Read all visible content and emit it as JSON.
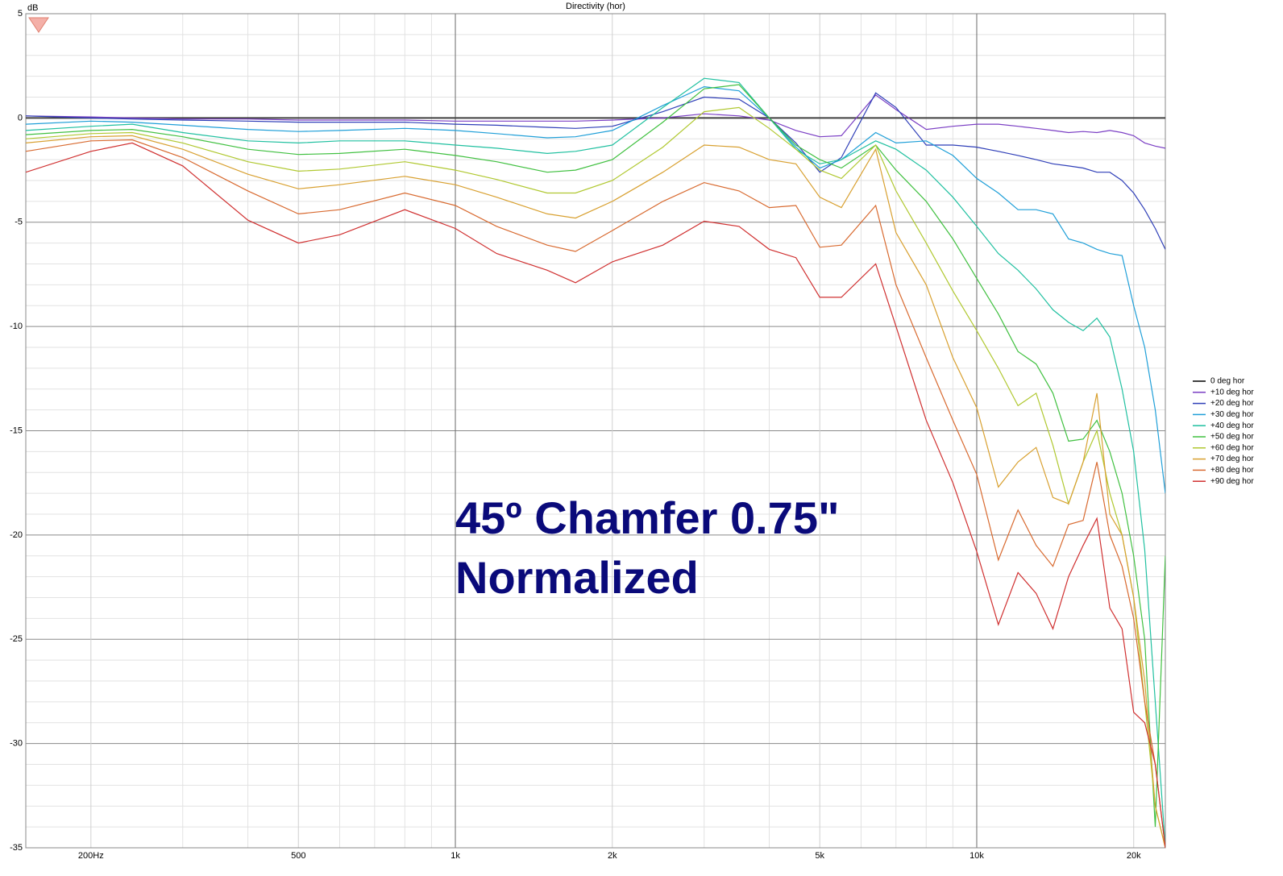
{
  "chart_data": {
    "type": "line",
    "title": "Directivity (hor)",
    "y_label": "dB",
    "annotations": [
      "45º Chamfer 0.75\"",
      "Normalized"
    ],
    "log_x": true,
    "grid": true,
    "legend": "right",
    "xlim": [
      150,
      23000
    ],
    "ylim": [
      -35,
      5
    ],
    "xticks": [
      {
        "value": 200,
        "label": "200Hz"
      },
      500,
      {
        "value": 1000,
        "label": "1k"
      },
      {
        "value": 2000,
        "label": "2k"
      },
      {
        "value": 5000,
        "label": "5k"
      },
      {
        "value": 10000,
        "label": "10k"
      },
      {
        "value": 20000,
        "label": "20k"
      }
    ],
    "xminorticks": [
      300,
      400,
      600,
      700,
      800,
      900,
      3000,
      4000,
      6000,
      7000,
      8000,
      9000
    ],
    "yticks": [
      5,
      0,
      -5,
      -10,
      -15,
      -20,
      -25,
      -30,
      -35
    ],
    "yminorticks": [
      4,
      3,
      2,
      1,
      -1,
      -2,
      -3,
      -4,
      -6,
      -7,
      -8,
      -9,
      -11,
      -12,
      -13,
      -14,
      -16,
      -17,
      -18,
      -19,
      -21,
      -22,
      -23,
      -24,
      -26,
      -27,
      -28,
      -29,
      -31,
      -32,
      -33,
      -34
    ],
    "x": [
      150,
      200,
      240,
      300,
      400,
      500,
      600,
      800,
      1000,
      1200,
      1500,
      1700,
      2000,
      2500,
      3000,
      3500,
      4000,
      4500,
      5000,
      5500,
      6400,
      7000,
      8000,
      9000,
      10000,
      11000,
      12000,
      13000,
      14000,
      15000,
      16000,
      17000,
      18000,
      19000,
      20000,
      21000,
      22000,
      23000
    ],
    "series": [
      {
        "name": "0 deg hor",
        "color": "#404040",
        "values": [
          0,
          0,
          0,
          0,
          0,
          0,
          0,
          0,
          0,
          0,
          0,
          0,
          0,
          0,
          0,
          0,
          0,
          0,
          0,
          0,
          0,
          0,
          0,
          0,
          0,
          0,
          0,
          0,
          0,
          0,
          0,
          0,
          0,
          0,
          0,
          0,
          0,
          0
        ]
      },
      {
        "name": "+10 deg hor",
        "color": "#7b3fc4",
        "values": [
          0.1,
          0.05,
          0,
          -0.05,
          -0.05,
          -0.1,
          -0.1,
          -0.1,
          -0.15,
          -0.15,
          -0.15,
          -0.15,
          -0.1,
          0,
          0.2,
          0.1,
          -0.1,
          -0.6,
          -0.9,
          -0.85,
          1.1,
          0.4,
          -0.55,
          -0.4,
          -0.3,
          -0.3,
          -0.4,
          -0.5,
          -0.6,
          -0.7,
          -0.65,
          -0.7,
          -0.6,
          -0.7,
          -0.85,
          -1.2,
          -1.35,
          -1.45
        ]
      },
      {
        "name": "+20 deg hor",
        "color": "#2f3fb8",
        "values": [
          0.1,
          0,
          -0.05,
          -0.1,
          -0.15,
          -0.2,
          -0.2,
          -0.2,
          -0.3,
          -0.35,
          -0.45,
          -0.5,
          -0.4,
          0.3,
          1.0,
          0.9,
          0,
          -1.2,
          -2.6,
          -1.9,
          1.2,
          0.5,
          -1.3,
          -1.3,
          -1.4,
          -1.6,
          -1.8,
          -2.0,
          -2.2,
          -2.3,
          -2.4,
          -2.6,
          -2.6,
          -3.0,
          -3.6,
          -4.4,
          -5.3,
          -6.3
        ]
      },
      {
        "name": "+30 deg hor",
        "color": "#1f9fd8",
        "values": [
          -0.3,
          -0.15,
          -0.2,
          -0.35,
          -0.55,
          -0.65,
          -0.6,
          -0.5,
          -0.6,
          -0.75,
          -0.95,
          -0.9,
          -0.6,
          0.6,
          1.5,
          1.3,
          0,
          -1.4,
          -2.4,
          -2.0,
          -0.7,
          -1.2,
          -1.1,
          -1.8,
          -2.9,
          -3.6,
          -4.4,
          -4.4,
          -4.6,
          -5.8,
          -6.0,
          -6.3,
          -6.5,
          -6.6,
          -9,
          -11,
          -14,
          -18
        ]
      },
      {
        "name": "+40 deg hor",
        "color": "#20c0a0",
        "values": [
          -0.6,
          -0.4,
          -0.3,
          -0.7,
          -1.1,
          -1.2,
          -1.1,
          -1.1,
          -1.3,
          -1.45,
          -1.7,
          -1.6,
          -1.3,
          0.5,
          1.9,
          1.7,
          0,
          -1.5,
          -2.2,
          -2.0,
          -1.1,
          -1.5,
          -2.5,
          -3.8,
          -5.2,
          -6.5,
          -7.3,
          -8.2,
          -9.2,
          -9.8,
          -10.2,
          -9.6,
          -10.5,
          -13,
          -16,
          -20.7,
          -28,
          -35
        ]
      },
      {
        "name": "+50 deg hor",
        "color": "#40c040",
        "values": [
          -0.8,
          -0.6,
          -0.55,
          -0.9,
          -1.5,
          -1.75,
          -1.7,
          -1.5,
          -1.8,
          -2.1,
          -2.6,
          -2.5,
          -2.0,
          -0.2,
          1.4,
          1.6,
          0,
          -1.3,
          -2.0,
          -2.4,
          -1.3,
          -2.5,
          -4.0,
          -5.8,
          -7.7,
          -9.4,
          -11.2,
          -11.8,
          -13.2,
          -15.5,
          -15.4,
          -14.5,
          -16,
          -18,
          -21,
          -25,
          -34,
          -21
        ]
      },
      {
        "name": "+60 deg hor",
        "color": "#b0c830",
        "values": [
          -1.0,
          -0.75,
          -0.7,
          -1.2,
          -2.1,
          -2.55,
          -2.45,
          -2.1,
          -2.5,
          -2.95,
          -3.6,
          -3.6,
          -3.0,
          -1.4,
          0.3,
          0.5,
          -0.5,
          -1.5,
          -2.5,
          -2.9,
          -1.3,
          -3.5,
          -6,
          -8.3,
          -10.2,
          -12,
          -13.8,
          -13.2,
          -15.7,
          -18.5,
          -16.5,
          -15,
          -18,
          -20,
          -23,
          -28,
          -33,
          -35
        ]
      },
      {
        "name": "+70 deg hor",
        "color": "#d8a030",
        "values": [
          -1.2,
          -0.9,
          -0.85,
          -1.5,
          -2.7,
          -3.4,
          -3.2,
          -2.8,
          -3.2,
          -3.8,
          -4.6,
          -4.8,
          -4.0,
          -2.6,
          -1.3,
          -1.4,
          -2.0,
          -2.2,
          -3.8,
          -4.3,
          -1.5,
          -5.5,
          -8,
          -11.5,
          -13.9,
          -17.7,
          -16.5,
          -15.8,
          -18.2,
          -18.5,
          -16.5,
          -13.2,
          -19,
          -20,
          -23,
          -27,
          -33,
          -35
        ]
      },
      {
        "name": "+80 deg hor",
        "color": "#d86a30",
        "values": [
          -1.6,
          -1.1,
          -1.05,
          -1.9,
          -3.5,
          -4.6,
          -4.4,
          -3.6,
          -4.2,
          -5.2,
          -6.1,
          -6.4,
          -5.4,
          -4.0,
          -3.1,
          -3.5,
          -4.3,
          -4.2,
          -6.2,
          -6.1,
          -4.2,
          -8,
          -11.5,
          -14.5,
          -17.1,
          -21.2,
          -18.8,
          -20.5,
          -21.5,
          -19.5,
          -19.3,
          -16.5,
          -20,
          -21.5,
          -24,
          -28,
          -31,
          -35
        ]
      },
      {
        "name": "+90 deg hor",
        "color": "#d03030",
        "values": [
          -2.6,
          -1.6,
          -1.2,
          -2.3,
          -4.9,
          -6.0,
          -5.6,
          -4.4,
          -5.3,
          -6.5,
          -7.3,
          -7.9,
          -6.9,
          -6.1,
          -4.95,
          -5.2,
          -6.3,
          -6.7,
          -8.6,
          -8.6,
          -7.0,
          -10,
          -14.5,
          -17.5,
          -20.8,
          -24.3,
          -21.8,
          -22.8,
          -24.5,
          -22,
          -20.5,
          -19.2,
          -23.5,
          -24.5,
          -28.5,
          -29,
          -31,
          -35
        ]
      }
    ]
  }
}
